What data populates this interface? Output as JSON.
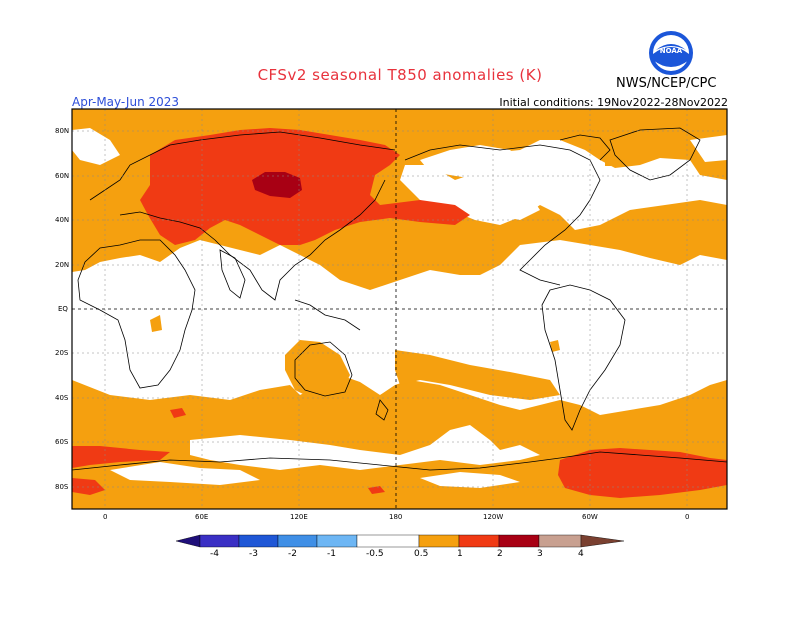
{
  "header": {
    "title": "CFSv2 seasonal T850 anomalies (K)",
    "season": "Apr-May-Jun 2023",
    "initial_conditions": "Initial conditions: 19Nov2022-28Nov2022",
    "agency": "NWS/NCEP/CPC",
    "logo_text": "NOAA"
  },
  "axes": {
    "lat_labels": [
      "80N",
      "60N",
      "40N",
      "20N",
      "EQ",
      "20S",
      "40S",
      "60S",
      "80S"
    ],
    "lon_labels": [
      "0",
      "60E",
      "120E",
      "180",
      "120W",
      "60W",
      "0"
    ]
  },
  "colorbar": {
    "labels": [
      "-4",
      "-3",
      "-2",
      "-1",
      "-0.5",
      "0.5",
      "1",
      "2",
      "3",
      "4"
    ],
    "colors": [
      "#1f0f7a",
      "#3a2fc4",
      "#1f57d6",
      "#3f8fe6",
      "#6db6f4",
      "#ffffff",
      "#f5a00f",
      "#f03a14",
      "#a80014",
      "#c8a090",
      "#7a4030"
    ]
  },
  "palette": {
    "orange": "#f5a00f",
    "red": "#f03a14",
    "dark_red": "#a80014"
  }
}
